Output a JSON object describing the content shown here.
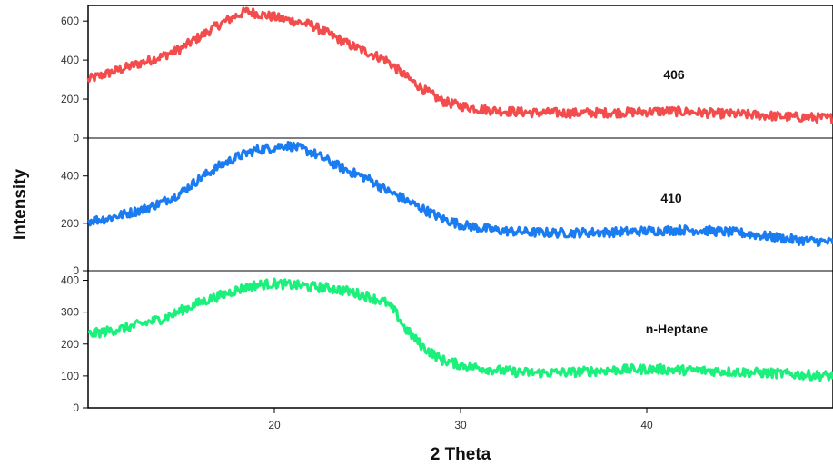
{
  "chart_data": {
    "type": "line",
    "xlabel": "2 Theta",
    "ylabel": "Intensity",
    "xlim": [
      10,
      50
    ],
    "xticks": [
      20,
      30,
      40
    ],
    "series": [
      {
        "name": "406",
        "color": "#f24c4c",
        "ylim": [
          0,
          680
        ],
        "yticks": [
          0,
          200,
          400,
          600
        ],
        "x": [
          10,
          11,
          12,
          13,
          14,
          15,
          16,
          17,
          18,
          18.5,
          19,
          20,
          21,
          22,
          23,
          24,
          25,
          26,
          27,
          28,
          29,
          30,
          31,
          32,
          33,
          34,
          35,
          36,
          37,
          38,
          39,
          40,
          41,
          42,
          43,
          44,
          45,
          46,
          47,
          48,
          49,
          50
        ],
        "y": [
          300,
          330,
          360,
          390,
          420,
          460,
          520,
          580,
          630,
          650,
          640,
          620,
          600,
          580,
          530,
          480,
          440,
          400,
          320,
          250,
          190,
          165,
          150,
          140,
          135,
          130,
          130,
          128,
          130,
          130,
          132,
          135,
          138,
          135,
          130,
          125,
          122,
          118,
          112,
          108,
          105,
          102
        ]
      },
      {
        "name": "410",
        "color": "#1a7cf0",
        "ylim": [
          0,
          560
        ],
        "yticks": [
          0,
          200,
          400
        ],
        "x": [
          10,
          11,
          12,
          13,
          14,
          15,
          16,
          17,
          18,
          19,
          20,
          20.5,
          21,
          22,
          23,
          24,
          25,
          26,
          27,
          28,
          29,
          30,
          31,
          32,
          33,
          34,
          35,
          36,
          37,
          38,
          39,
          40,
          41,
          42,
          43,
          44,
          45,
          46,
          47,
          48,
          49,
          50
        ],
        "y": [
          210,
          220,
          240,
          260,
          290,
          330,
          390,
          440,
          480,
          510,
          520,
          530,
          525,
          500,
          460,
          420,
          390,
          340,
          300,
          260,
          220,
          195,
          180,
          170,
          165,
          162,
          160,
          160,
          162,
          162,
          165,
          168,
          170,
          172,
          170,
          165,
          160,
          150,
          140,
          130,
          125,
          120
        ]
      },
      {
        "name": "n-Heptane",
        "color": "#1cf07c",
        "ylim": [
          0,
          430
        ],
        "yticks": [
          0,
          100,
          200,
          300,
          400
        ],
        "x": [
          10,
          11,
          12,
          13,
          14,
          15,
          16,
          17,
          18,
          19,
          20,
          21,
          22,
          23,
          24,
          25,
          26,
          26.5,
          27,
          28,
          29,
          30,
          31,
          32,
          33,
          34,
          35,
          36,
          37,
          38,
          39,
          40,
          41,
          42,
          43,
          44,
          45,
          46,
          47,
          48,
          49,
          50
        ],
        "y": [
          230,
          240,
          250,
          265,
          280,
          305,
          330,
          350,
          370,
          385,
          390,
          385,
          380,
          375,
          365,
          350,
          330,
          300,
          250,
          190,
          150,
          135,
          125,
          118,
          112,
          110,
          110,
          112,
          115,
          118,
          120,
          122,
          120,
          118,
          117,
          115,
          112,
          110,
          108,
          105,
          102,
          100
        ]
      }
    ]
  }
}
